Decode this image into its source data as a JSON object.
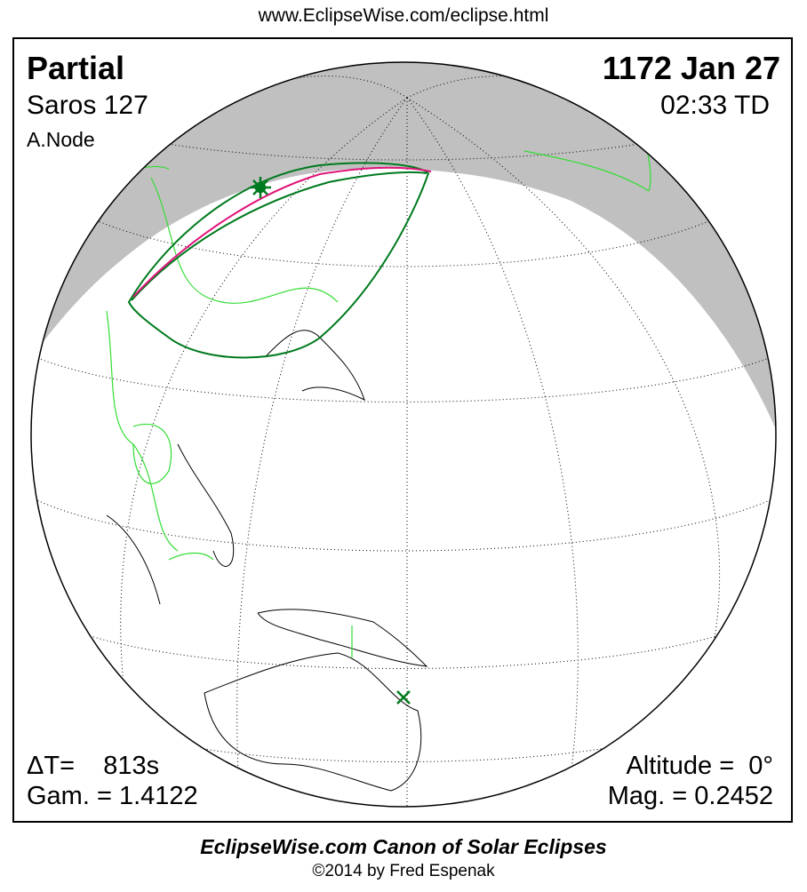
{
  "header": {
    "url": "www.EclipseWise.com/eclipse.html"
  },
  "eclipse": {
    "type": "Partial",
    "date": "1172 Jan 27",
    "saros": "Saros 127",
    "time": "02:33 TD",
    "node": "A.Node",
    "delta_t": "ΔT=    813s",
    "gamma": "Gam. = 1.4122",
    "altitude": "Altitude =  0°",
    "magnitude": "Mag. = 0.2452"
  },
  "footer": {
    "title": "EclipseWise.com Canon of Solar Eclipses",
    "copyright": "©2014 by Fred Espenak"
  },
  "colors": {
    "night": "#c0c0c0",
    "eclipse_limits": "#007a1e",
    "max_eclipse_line": "#e0157a",
    "borders": "#33dd33"
  },
  "markers": {
    "greatest_eclipse": "star-icon",
    "sub_solar": "x-icon"
  }
}
